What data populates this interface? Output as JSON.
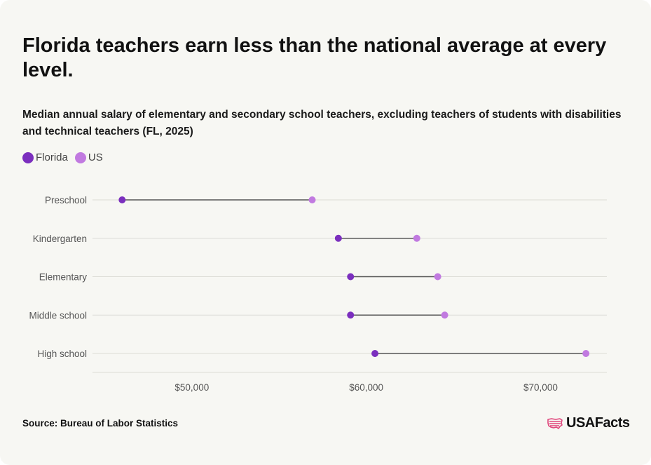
{
  "title": "Florida teachers earn less than the national average at every level.",
  "subtitle": "Median annual salary of elementary and secondary school teachers, excluding teachers of students with disabilities and technical teachers (FL, 2025)",
  "source": "Source: Bureau of Labor Statistics",
  "logo": {
    "text": "USAFacts",
    "icon": "usa-flag-map-icon"
  },
  "colors": {
    "florida": "#7b2fbe",
    "us": "#c17ae0",
    "connector": "#555555",
    "grid": "#dcdcd6",
    "label": "#555555",
    "logo_accent": "#e0457b"
  },
  "chart_data": {
    "type": "dumbbell",
    "legend": [
      {
        "name": "Florida",
        "color": "#7b2fbe"
      },
      {
        "name": "US",
        "color": "#c17ae0"
      }
    ],
    "legend_position": "top-left",
    "categories": [
      "Preschool",
      "Kindergarten",
      "Elementary",
      "Middle school",
      "High school"
    ],
    "series": [
      {
        "name": "Florida",
        "values": [
          46000,
          58400,
          59100,
          59100,
          60500
        ]
      },
      {
        "name": "US",
        "values": [
          56900,
          62900,
          64100,
          64500,
          72600
        ]
      }
    ],
    "x_ticks": [
      50000,
      60000,
      70000
    ],
    "x_tick_labels": [
      "$50,000",
      "$60,000",
      "$70,000"
    ],
    "xlim": [
      44300,
      73800
    ],
    "grid": true
  }
}
